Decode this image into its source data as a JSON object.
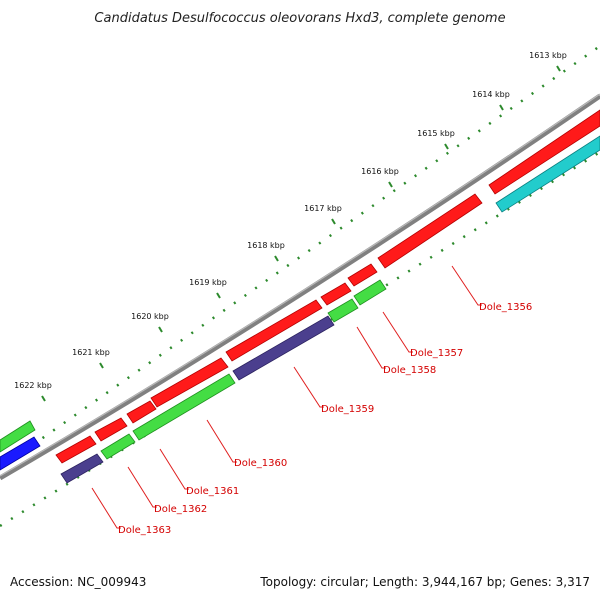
{
  "title": "Candidatus Desulfococcus oleovorans Hxd3, complete genome",
  "footer": {
    "accession": "Accession: NC_009943",
    "summary": "Topology: circular; Length: 3,944,167 bp; Genes: 3,317"
  },
  "colors": {
    "backbone": "#808080",
    "tick_mark": "#2d8a2d",
    "label_line": "#e02020",
    "label_text": "#d40000",
    "red_feature": "#ff1a1a",
    "green_feature": "#44dd44",
    "purple_feature": "#4b3f8e",
    "blue_feature": "#1a1aff",
    "cyan_feature": "#22cccc"
  },
  "kbp_ticks": [
    "1613 kbp",
    "1614 kbp",
    "1615 kbp",
    "1616 kbp",
    "1617 kbp",
    "1618 kbp",
    "1619 kbp",
    "1620 kbp",
    "1621 kbp",
    "1622 kbp"
  ],
  "gene_labels": [
    "Dole_1356",
    "Dole_1357",
    "Dole_1358",
    "Dole_1359",
    "Dole_1360",
    "Dole_1361",
    "Dole_1362",
    "Dole_1363"
  ]
}
